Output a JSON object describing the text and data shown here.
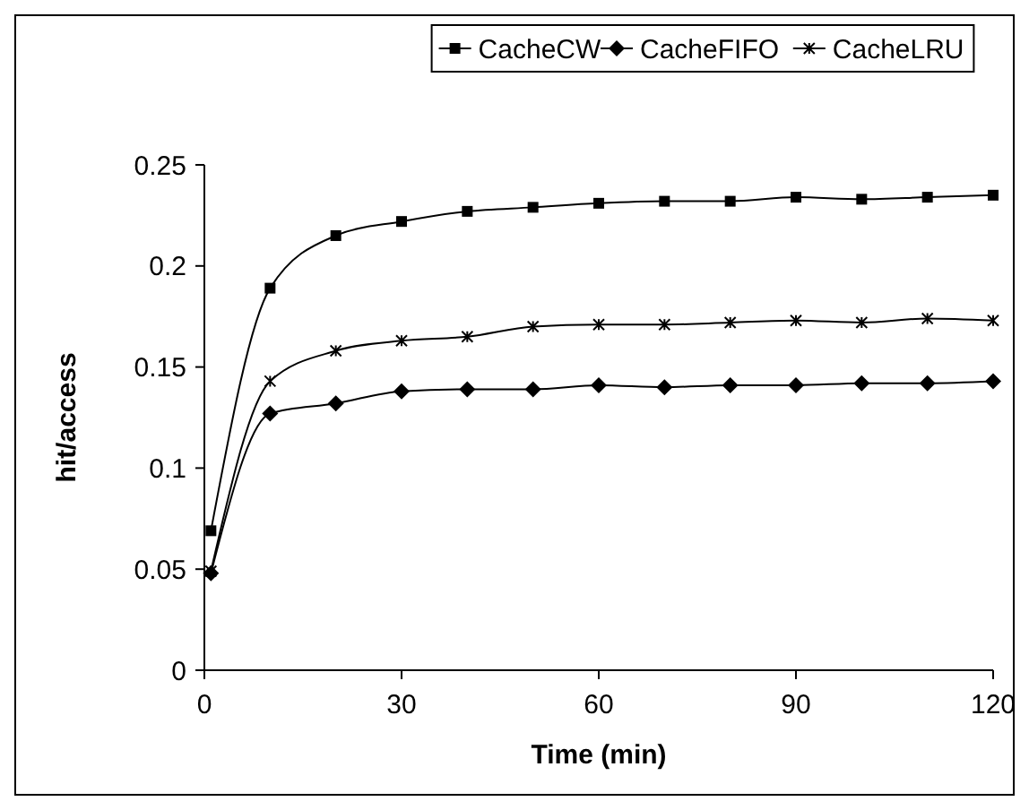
{
  "chart_data": {
    "type": "line",
    "xlabel": "Time (min)",
    "ylabel": "hit/access",
    "x": [
      1,
      10,
      20,
      30,
      40,
      50,
      60,
      70,
      80,
      90,
      100,
      110,
      120
    ],
    "series": [
      {
        "name": "CacheCW",
        "color": "#000000",
        "marker": "square",
        "values": [
          0.069,
          0.189,
          0.215,
          0.222,
          0.227,
          0.229,
          0.231,
          0.232,
          0.232,
          0.234,
          0.233,
          0.234,
          0.235
        ]
      },
      {
        "name": "CacheFIFO",
        "color": "#000000",
        "marker": "diamond",
        "values": [
          0.048,
          0.127,
          0.132,
          0.138,
          0.139,
          0.139,
          0.141,
          0.14,
          0.141,
          0.141,
          0.142,
          0.142,
          0.143
        ]
      },
      {
        "name": "CacheLRU",
        "color": "#000000",
        "marker": "cross",
        "values": [
          0.049,
          0.143,
          0.158,
          0.163,
          0.165,
          0.17,
          0.171,
          0.171,
          0.172,
          0.173,
          0.172,
          0.174,
          0.173
        ]
      }
    ],
    "xlim": [
      0,
      120
    ],
    "xticks": [
      0,
      30,
      60,
      90,
      120
    ],
    "ylim": [
      0,
      0.25
    ],
    "yticks": [
      0,
      0.05,
      0.1,
      0.15,
      0.2,
      0.25
    ],
    "grid": false,
    "legend": "top"
  }
}
